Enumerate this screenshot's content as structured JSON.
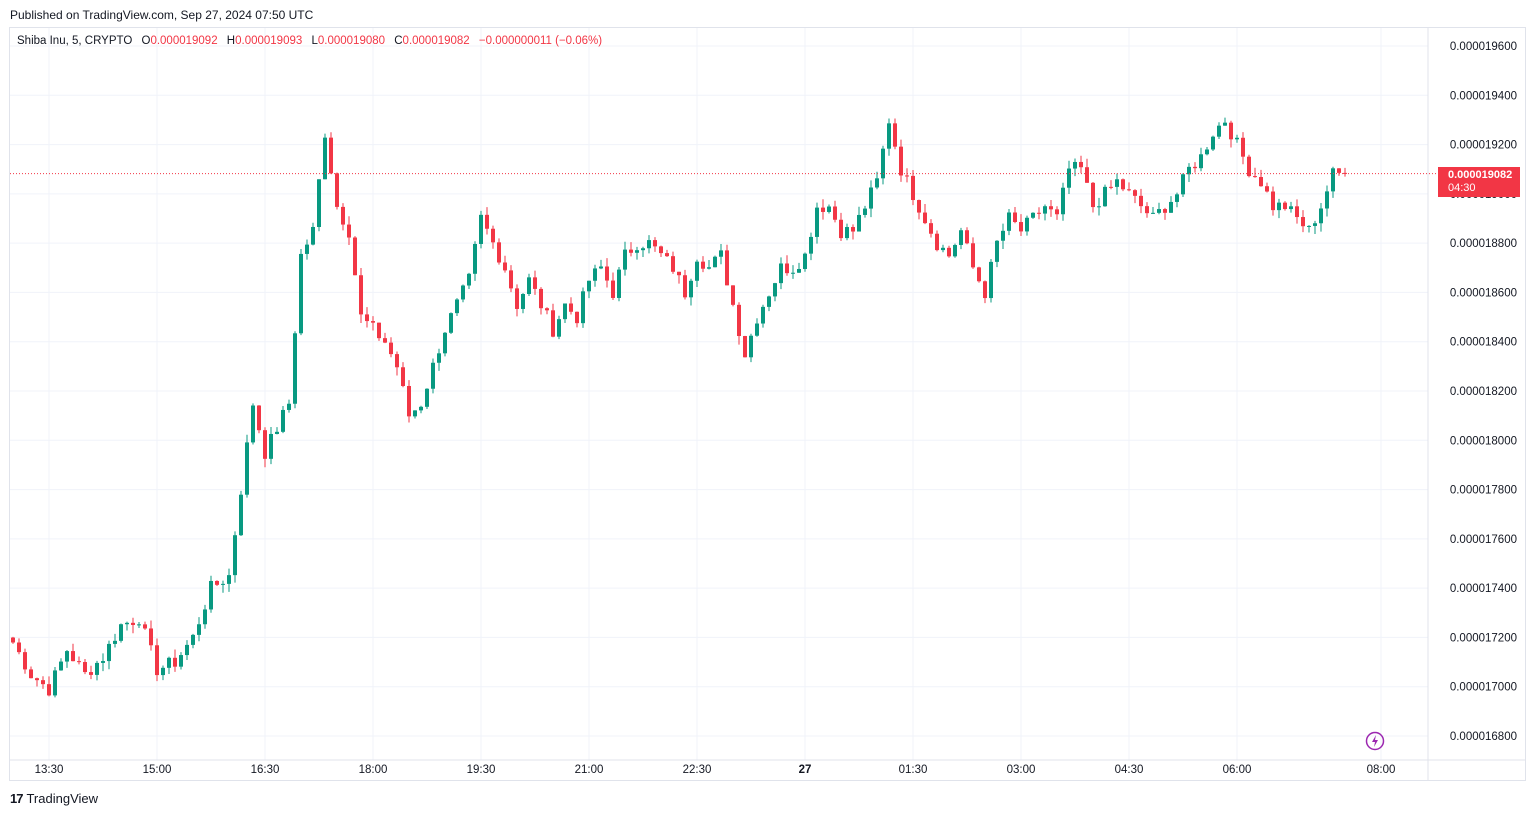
{
  "header": {
    "published": "Published on TradingView.com, Sep 27, 2024 07:50 UTC"
  },
  "legend": {
    "symbol": "Shiba Inu, 5, CRYPTO",
    "o_label": "O",
    "o_value": "0.000019092",
    "h_label": "H",
    "h_value": "0.000019093",
    "l_label": "L",
    "l_value": "0.000019080",
    "c_label": "C",
    "c_value": "0.000019082",
    "change": "−0.000000011 (−0.06%)"
  },
  "last_price": {
    "price": "0.000019082",
    "countdown": "04:30"
  },
  "footer": {
    "brand": "TradingView"
  },
  "colors": {
    "up": "#089981",
    "down": "#f23645",
    "grid": "#f0f3fa",
    "text": "#131722"
  },
  "chart_data": {
    "type": "candlestick",
    "timeframe": "5",
    "y_ticks": [
      1.68e-05,
      1.7e-05,
      1.72e-05,
      1.74e-05,
      1.76e-05,
      1.78e-05,
      1.8e-05,
      1.82e-05,
      1.84e-05,
      1.86e-05,
      1.88e-05,
      1.9e-05,
      1.92e-05,
      1.94e-05,
      1.96e-05
    ],
    "y_tick_labels": [
      "0.000016800",
      "0.000017000",
      "0.000017200",
      "0.000017400",
      "0.000017600",
      "0.000017800",
      "0.000018000",
      "0.000018200",
      "0.000018400",
      "0.000018600",
      "0.000018800",
      "0.000019000",
      "0.000019200",
      "0.000019400",
      "0.000019600"
    ],
    "ylim": [
      1.676e-05,
      1.969e-05
    ],
    "x_ticks": [
      {
        "label": "13:30",
        "bar": 6
      },
      {
        "label": "15:00",
        "bar": 24
      },
      {
        "label": "16:30",
        "bar": 42
      },
      {
        "label": "18:00",
        "bar": 60
      },
      {
        "label": "19:30",
        "bar": 78
      },
      {
        "label": "21:00",
        "bar": 96
      },
      {
        "label": "22:30",
        "bar": 114
      },
      {
        "label": "27",
        "bar": 132,
        "bold": true
      },
      {
        "label": "01:30",
        "bar": 150
      },
      {
        "label": "03:00",
        "bar": 168
      },
      {
        "label": "04:30",
        "bar": 186
      },
      {
        "label": "06:00",
        "bar": 204
      },
      {
        "label": "08:00",
        "bar": 228
      }
    ],
    "bars_visible": 223,
    "last_close": 1.9082e-05,
    "anchors": [
      [
        0,
        17180
      ],
      [
        3,
        17050
      ],
      [
        6,
        16990
      ],
      [
        9,
        17150
      ],
      [
        12,
        17050
      ],
      [
        15,
        17120
      ],
      [
        18,
        17250
      ],
      [
        21,
        17280
      ],
      [
        24,
        17070
      ],
      [
        27,
        17100
      ],
      [
        30,
        17200
      ],
      [
        33,
        17400
      ],
      [
        36,
        17450
      ],
      [
        38,
        17800
      ],
      [
        40,
        18150
      ],
      [
        42,
        17950
      ],
      [
        44,
        18050
      ],
      [
        46,
        18150
      ],
      [
        48,
        18750
      ],
      [
        50,
        18850
      ],
      [
        52,
        19250
      ],
      [
        54,
        18950
      ],
      [
        56,
        18850
      ],
      [
        58,
        18500
      ],
      [
        60,
        18450
      ],
      [
        62,
        18400
      ],
      [
        64,
        18300
      ],
      [
        66,
        18100
      ],
      [
        68,
        18150
      ],
      [
        70,
        18300
      ],
      [
        72,
        18450
      ],
      [
        74,
        18550
      ],
      [
        76,
        18650
      ],
      [
        78,
        18900
      ],
      [
        80,
        18800
      ],
      [
        82,
        18700
      ],
      [
        84,
        18550
      ],
      [
        86,
        18650
      ],
      [
        88,
        18550
      ],
      [
        90,
        18450
      ],
      [
        92,
        18550
      ],
      [
        94,
        18500
      ],
      [
        96,
        18650
      ],
      [
        98,
        18700
      ],
      [
        100,
        18600
      ],
      [
        102,
        18750
      ],
      [
        104,
        18800
      ],
      [
        106,
        18800
      ],
      [
        108,
        18750
      ],
      [
        110,
        18700
      ],
      [
        112,
        18600
      ],
      [
        114,
        18750
      ],
      [
        116,
        18700
      ],
      [
        118,
        18750
      ],
      [
        120,
        18550
      ],
      [
        122,
        18350
      ],
      [
        124,
        18500
      ],
      [
        126,
        18600
      ],
      [
        128,
        18700
      ],
      [
        130,
        18700
      ],
      [
        132,
        18750
      ],
      [
        134,
        18950
      ],
      [
        136,
        18950
      ],
      [
        138,
        18850
      ],
      [
        140,
        18850
      ],
      [
        142,
        18950
      ],
      [
        144,
        19050
      ],
      [
        146,
        19300
      ],
      [
        148,
        19100
      ],
      [
        150,
        19000
      ],
      [
        152,
        18900
      ],
      [
        154,
        18800
      ],
      [
        156,
        18750
      ],
      [
        158,
        18850
      ],
      [
        160,
        18700
      ],
      [
        162,
        18600
      ],
      [
        164,
        18800
      ],
      [
        166,
        18900
      ],
      [
        168,
        18850
      ],
      [
        170,
        18900
      ],
      [
        172,
        18950
      ],
      [
        174,
        18900
      ],
      [
        176,
        19100
      ],
      [
        178,
        19100
      ],
      [
        180,
        18950
      ],
      [
        182,
        19000
      ],
      [
        184,
        19050
      ],
      [
        186,
        19000
      ],
      [
        188,
        18950
      ],
      [
        190,
        18900
      ],
      [
        192,
        18950
      ],
      [
        194,
        19000
      ],
      [
        196,
        19100
      ],
      [
        198,
        19150
      ],
      [
        200,
        19250
      ],
      [
        202,
        19300
      ],
      [
        204,
        19200
      ],
      [
        206,
        19100
      ],
      [
        208,
        19050
      ],
      [
        210,
        18950
      ],
      [
        212,
        18950
      ],
      [
        214,
        18900
      ],
      [
        216,
        18850
      ],
      [
        218,
        18950
      ],
      [
        220,
        19080
      ],
      [
        222,
        19082
      ]
    ]
  }
}
